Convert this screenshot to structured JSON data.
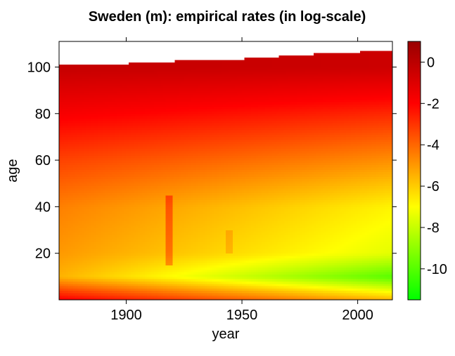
{
  "chart_data": {
    "type": "heatmap",
    "title": "Sweden (m): empirical rates (in log-scale)",
    "xlabel": "year",
    "ylabel": "age",
    "xlim": [
      1871,
      2015
    ],
    "ylim": [
      0,
      111
    ],
    "x_ticks": [
      "1900",
      "1950",
      "2000"
    ],
    "y_ticks": [
      "20",
      "40",
      "60",
      "80",
      "100"
    ],
    "color_scale": {
      "min": -11.5,
      "max": 1,
      "ticks": [
        "0",
        "-2",
        "-4",
        "-6",
        "-8",
        "-10"
      ],
      "colors": [
        "#00ff00",
        "#ffff00",
        "#ff8000",
        "#ff0000",
        "#990000"
      ]
    },
    "observed_age_limit_by_year": [
      {
        "year": 1871,
        "age": 101
      },
      {
        "year": 1900,
        "age": 101
      },
      {
        "year": 1920,
        "age": 102
      },
      {
        "year": 1950,
        "age": 103
      },
      {
        "year": 1980,
        "age": 105
      },
      {
        "year": 2000,
        "age": 106
      },
      {
        "year": 2015,
        "age": 107
      }
    ],
    "approximate_log_rate_by_age": [
      {
        "age": 0,
        "log_rate_1871": -1.8,
        "log_rate_2015": -5.5
      },
      {
        "age": 10,
        "log_rate_1871": -5.5,
        "log_rate_2015": -10.0
      },
      {
        "age": 20,
        "log_rate_1871": -5.0,
        "log_rate_2015": -7.5
      },
      {
        "age": 40,
        "log_rate_1871": -4.5,
        "log_rate_2015": -6.8
      },
      {
        "age": 60,
        "log_rate_1871": -3.3,
        "log_rate_2015": -4.8
      },
      {
        "age": 80,
        "log_rate_1871": -1.8,
        "log_rate_2015": -2.8
      },
      {
        "age": 100,
        "log_rate_1871": -0.3,
        "log_rate_2015": -0.5
      }
    ],
    "notable_features": [
      {
        "year": 1918,
        "description": "elevated rates at young adult ages"
      },
      {
        "year": 1944,
        "description": "elevated rates at ages 20-30"
      }
    ]
  }
}
